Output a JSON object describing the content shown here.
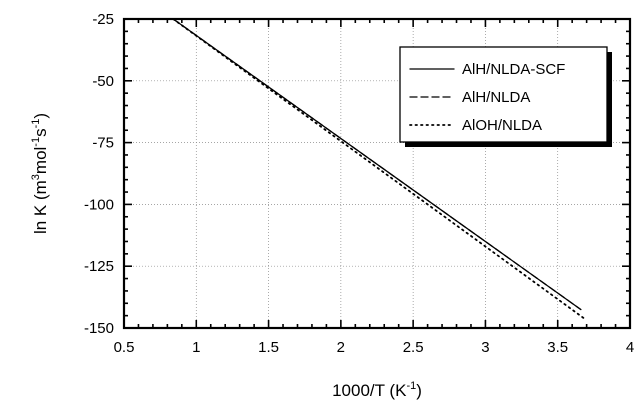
{
  "chart_data": {
    "type": "line",
    "xlabel": {
      "base": "1000/T (K",
      "sup": "-1",
      "tail": ")"
    },
    "ylabel": {
      "parts": [
        {
          "t": "ln K (m"
        },
        {
          "t": "3",
          "sup": true
        },
        {
          "t": "mol"
        },
        {
          "t": "-1",
          "sup": true
        },
        {
          "t": "s"
        },
        {
          "t": "-1",
          "sup": true
        },
        {
          "t": ")"
        }
      ]
    },
    "xlim": [
      0.5,
      4
    ],
    "ylim": [
      -150,
      -25
    ],
    "xticks": [
      0.5,
      1,
      1.5,
      2,
      2.5,
      3,
      3.5,
      4
    ],
    "xtick_labels": [
      "0.5",
      "1",
      "1.5",
      "2",
      "2.5",
      "3",
      "3.5",
      "4"
    ],
    "yticks": [
      -150,
      -125,
      -100,
      -75,
      -50,
      -25
    ],
    "ytick_labels": [
      "-150",
      "-125",
      "-100",
      "-75",
      "-50",
      "-25"
    ],
    "grid": true,
    "legend_position": "top-right",
    "series": [
      {
        "name": "AlH/NLDA-SCF",
        "style": "solid",
        "x": [
          0.84,
          3.66
        ],
        "y": [
          -25,
          -142.5
        ]
      },
      {
        "name": "AlH/NLDA",
        "style": "dashed",
        "x": [
          0.84,
          3.66
        ],
        "y": [
          -25,
          -142.5
        ]
      },
      {
        "name": "AlOH/NLDA",
        "style": "dotted",
        "x": [
          0.84,
          3.68
        ],
        "y": [
          -25,
          -146
        ]
      }
    ]
  }
}
